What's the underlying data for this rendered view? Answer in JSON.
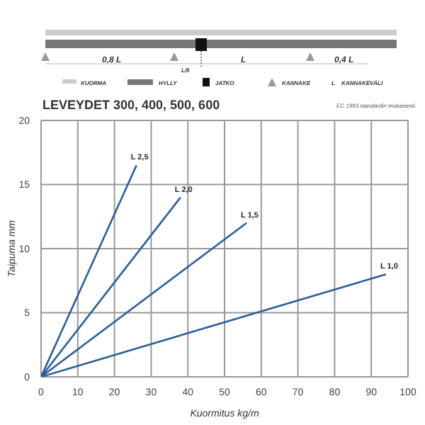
{
  "chart_data": {
    "type": "line",
    "title": "LEVEYDET 300, 400, 500, 600",
    "xlabel": "Kuormitus kg/m",
    "ylabel": "Taipuma mm",
    "annotations": [
      "EC 1993 standardin mukaisesti.",
      "0,8 L",
      "L/5",
      "L",
      "0,4 L",
      "KUORMA",
      "HYLLY",
      "JATKO",
      "KANNAKE",
      "L",
      "KANNAKEVÄLI"
    ],
    "series": [
      {
        "name": "L 2,5",
        "color": "#2b5f9a",
        "x": [
          0,
          26
        ],
        "values": [
          0,
          16.5
        ]
      },
      {
        "name": "L 2,0",
        "color": "#2b5f9a",
        "x": [
          0,
          38
        ],
        "values": [
          0,
          14
        ]
      },
      {
        "name": "L 1,5",
        "color": "#2b5f9a",
        "x": [
          0,
          56
        ],
        "values": [
          0,
          12
        ]
      },
      {
        "name": "L 1,0",
        "color": "#2b5f9a",
        "x": [
          0,
          94
        ],
        "values": [
          0,
          8
        ]
      }
    ],
    "xlim": [
      0,
      100
    ],
    "xticks": [
      0,
      10,
      20,
      30,
      40,
      50,
      60,
      70,
      80,
      90,
      100
    ],
    "ylim": [
      0,
      20
    ],
    "yticks": [
      0,
      5,
      10,
      15,
      20
    ],
    "grid": true,
    "marker": "none",
    "line_style": "solid"
  }
}
